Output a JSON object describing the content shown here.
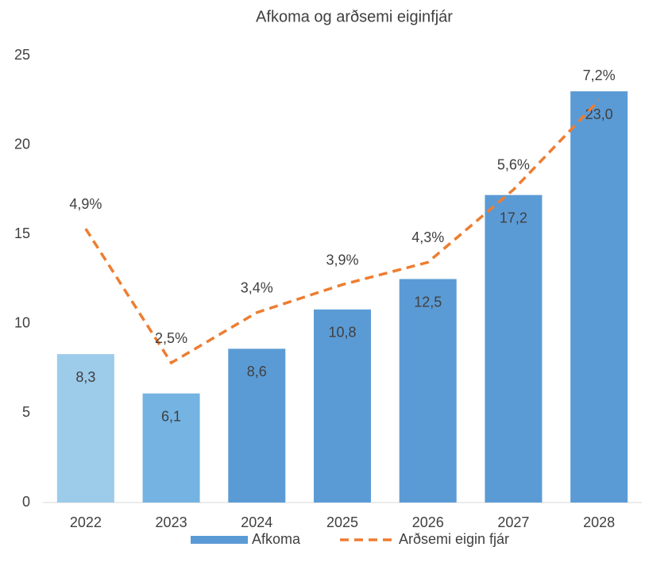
{
  "chart_data": {
    "type": "bar",
    "title": "Afkoma og arðsemi eiginfjár",
    "categories": [
      "2022",
      "2023",
      "2024",
      "2025",
      "2026",
      "2027",
      "2028"
    ],
    "series": [
      {
        "name": "Afkoma",
        "type": "bar",
        "color": "#5b9bd5",
        "colors": [
          "#9dcbea",
          "#74b3e2",
          "#5b9bd5",
          "#5b9bd5",
          "#5b9bd5",
          "#5b9bd5",
          "#5b9bd5"
        ],
        "values": [
          8.3,
          6.1,
          8.6,
          10.8,
          12.5,
          17.2,
          23.0
        ],
        "value_labels": [
          "8,3",
          "6,1",
          "8,6",
          "10,8",
          "12,5",
          "17,2",
          "23,0"
        ]
      },
      {
        "name": "Arðsemi eigin fjár",
        "type": "line",
        "axis": "y2",
        "color": "#ed7d31",
        "dashed": true,
        "values": [
          4.9,
          2.5,
          3.4,
          3.9,
          4.3,
          5.6,
          7.2
        ],
        "value_labels": [
          "4,9%",
          "2,5%",
          "3,4%",
          "3,9%",
          "4,3%",
          "5,6%",
          "7,2%"
        ]
      }
    ],
    "ylim": [
      0,
      25
    ],
    "yticks": [
      0,
      5,
      10,
      15,
      20,
      25
    ],
    "y2lim": [
      0,
      8
    ],
    "grid": false,
    "legend": "bottom"
  }
}
